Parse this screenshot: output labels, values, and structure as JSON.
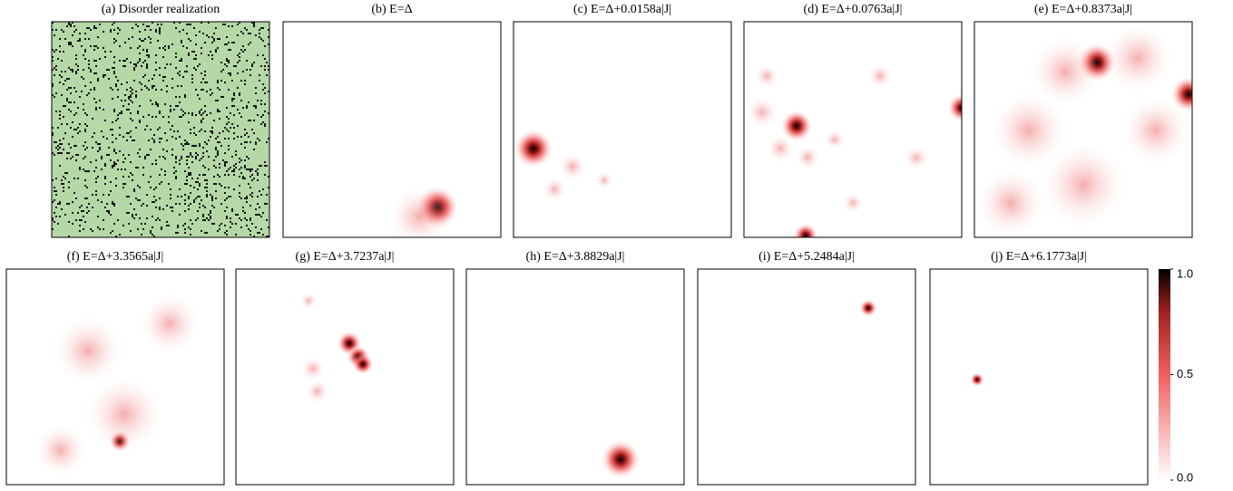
{
  "panels": [
    {
      "title": "(a) Disorder realization"
    },
    {
      "title": "(b) E=Δ"
    },
    {
      "title": "(c) E=Δ+0.0158a|J|"
    },
    {
      "title": "(d) E=Δ+0.0763a|J|"
    },
    {
      "title": "(e) E=Δ+0.8373a|J|"
    },
    {
      "title": "(f) E=Δ+3.3565a|J|"
    },
    {
      "title": "(g) E=Δ+3.7237a|J|"
    },
    {
      "title": "(h) E=Δ+3.8829a|J|"
    },
    {
      "title": "(i) E=Δ+5.2484a|J|"
    },
    {
      "title": "(j) E=Δ+6.1773a|J|"
    }
  ],
  "colorbar": {
    "clim": [
      0,
      1
    ],
    "ticks": [
      {
        "value": 0,
        "label": "0.0"
      },
      {
        "value": 0.5,
        "label": "0.5"
      },
      {
        "value": 1,
        "label": "1.0"
      }
    ]
  }
}
